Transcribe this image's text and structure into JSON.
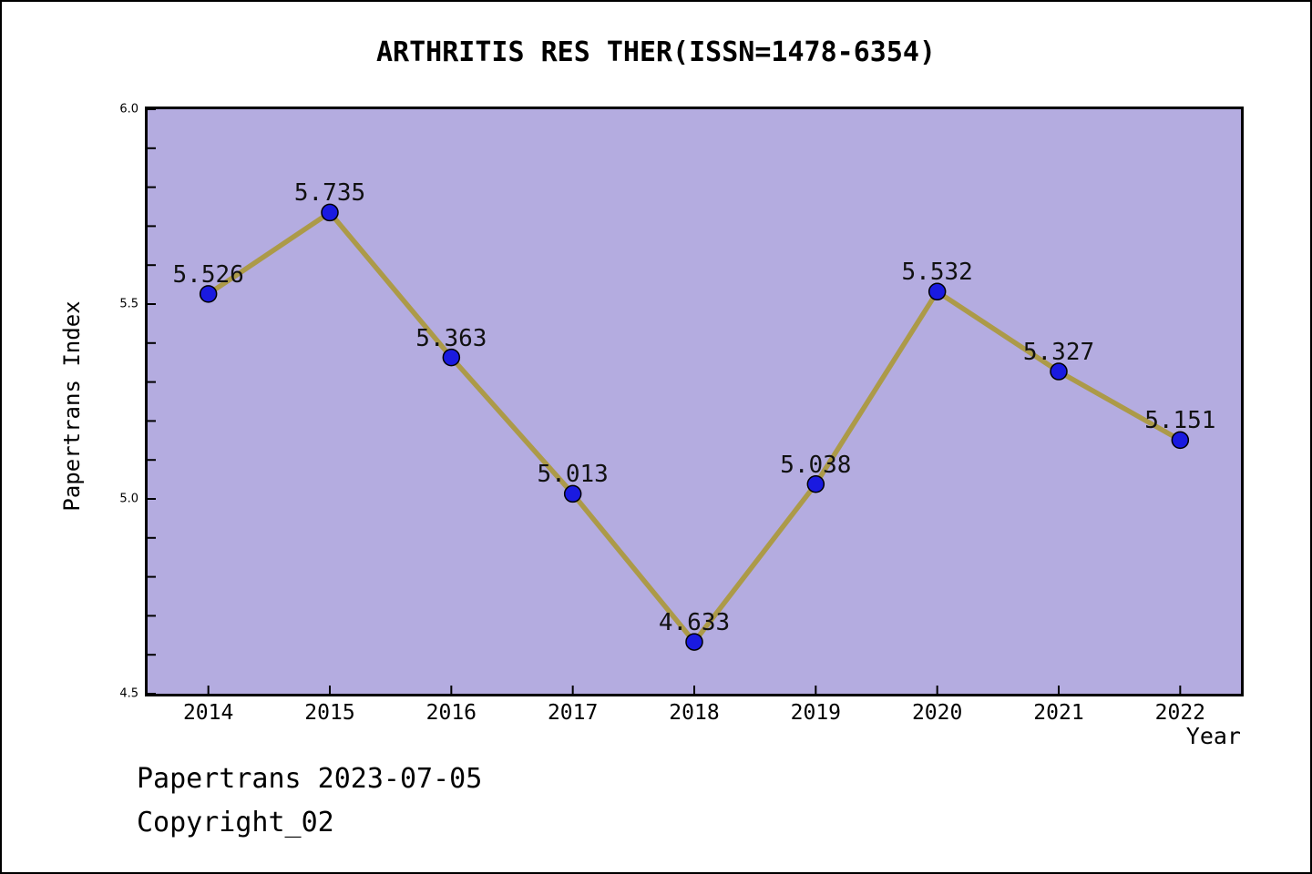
{
  "title": "ARTHRITIS RES THER(ISSN=1478-6354)",
  "footer": {
    "line1": "Papertrans 2023-07-05",
    "line2": "Copyright_02"
  },
  "chart_data": {
    "type": "line",
    "title": "ARTHRITIS RES THER(ISSN=1478-6354)",
    "xlabel": "Year",
    "ylabel": "Papertrans Index",
    "categories": [
      "2014",
      "2015",
      "2016",
      "2017",
      "2018",
      "2019",
      "2020",
      "2021",
      "2022"
    ],
    "x": [
      2014,
      2015,
      2016,
      2017,
      2018,
      2019,
      2020,
      2021,
      2022
    ],
    "series": [
      {
        "name": "Papertrans Index",
        "values": [
          5.526,
          5.735,
          5.363,
          5.013,
          4.633,
          5.038,
          5.532,
          5.327,
          5.151
        ],
        "point_labels": [
          "5.526",
          "5.735",
          "5.363",
          "5.013",
          "4.633",
          "5.038",
          "5.532",
          "5.327",
          "5.151"
        ]
      }
    ],
    "xlim": [
      2013.5,
      2022.5
    ],
    "ylim": [
      4.5,
      6.0
    ],
    "y_tick_labels": [
      "4.5",
      "5.0",
      "5.5",
      "6.0"
    ],
    "y_minor_tick_step": 0.1,
    "grid": false,
    "legend_position": "none",
    "colors": {
      "plot_bg": "#b4ace0",
      "line": "#ac9a48",
      "point_fill": "#1a1ae0",
      "point_edge": "#000000",
      "text": "#000000"
    }
  }
}
